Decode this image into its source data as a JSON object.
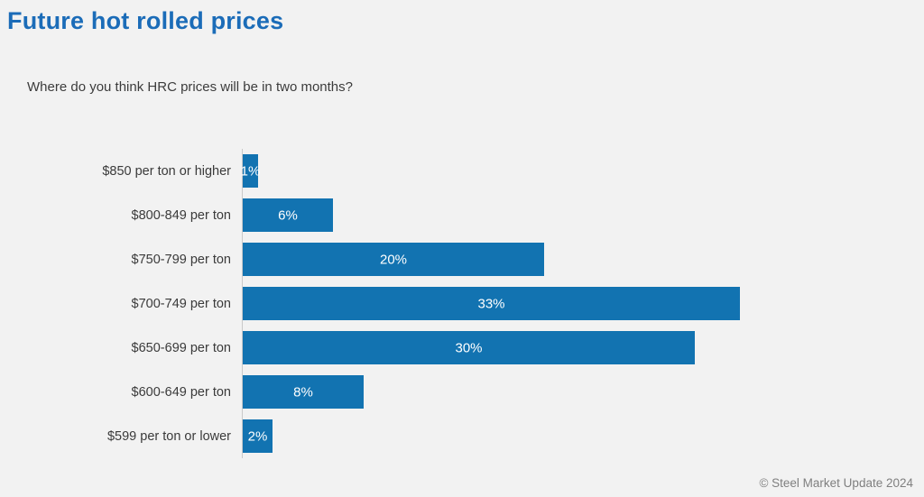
{
  "page": {
    "title": "Future hot rolled prices",
    "subtitle": "Where do you think HRC prices will be in two months?",
    "footer": "© Steel Market Update 2024"
  },
  "colors": {
    "title_accent": "#1b6cb8",
    "bar": "#1273b1",
    "background": "#f2f2f2",
    "axis_line": "#c9c9c9",
    "value_label": "#ffffff"
  },
  "chart_data": {
    "type": "bar",
    "orientation": "horizontal",
    "title": "Future hot rolled prices",
    "subtitle": "Where do you think HRC prices will be in two months?",
    "xlabel": "",
    "ylabel": "",
    "categories": [
      "$850 per ton or higher",
      "$800-849 per ton",
      "$750-799 per ton",
      "$700-749 per ton",
      "$650-699 per ton",
      "$600-649 per ton",
      "$599 per ton or lower"
    ],
    "values": [
      1,
      6,
      20,
      33,
      30,
      8,
      2
    ],
    "value_labels": [
      "1%",
      "6%",
      "20%",
      "33%",
      "30%",
      "8%",
      "2%"
    ],
    "xlim": [
      0,
      35
    ],
    "grid": false,
    "legend": false,
    "data_labels": "inside-center"
  }
}
